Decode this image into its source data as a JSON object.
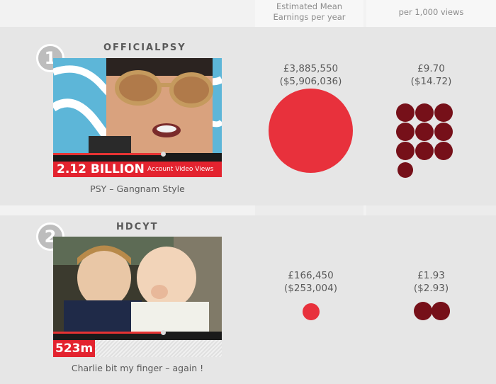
{
  "header": {
    "col1": "Estimated Mean\nEarnings per year",
    "col2": "per 1,000 views"
  },
  "rows": [
    {
      "rank": "1",
      "channel": "OFFICIALPSY",
      "views_number": "2.12 BILLION",
      "views_label": "Account Video Views",
      "video_title": "PSY – Gangnam Style",
      "earnings_gbp": "£3,885,550",
      "earnings_usd": "($5,906,036)",
      "per_view_gbp": "£9.70",
      "per_view_usd": "($14.72)",
      "per_view_dots": 9.7
    },
    {
      "rank": "2",
      "channel": "HDCYT",
      "views_number": "523m",
      "video_title": "Charlie bit my finger – again !",
      "earnings_gbp": "£166,450",
      "earnings_usd": "($253,004)",
      "per_view_gbp": "£1.93",
      "per_view_usd": "($2.93)",
      "per_view_dots": 1.93
    }
  ],
  "colors": {
    "earnings_dot": "#e8313c",
    "per_view_dot": "#761019",
    "views_banner": "#e3232f"
  }
}
